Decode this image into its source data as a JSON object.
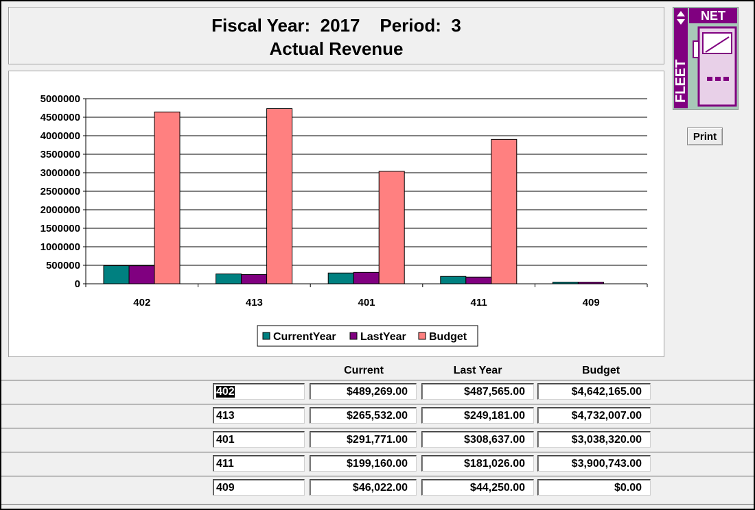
{
  "header": {
    "fiscal_line": "Fiscal Year:  2017    Period:  3",
    "subtitle": "Actual Revenue"
  },
  "logo": {
    "text_top": "NET",
    "text_side": "FLEET"
  },
  "print_label": "Print",
  "colors": {
    "CurrentYear": "#008080",
    "LastYear": "#800080",
    "Budget": "#ff8080"
  },
  "chart_data": {
    "type": "bar",
    "categories": [
      "402",
      "413",
      "401",
      "411",
      "409"
    ],
    "series": [
      {
        "name": "CurrentYear",
        "values": [
          489269,
          265532,
          291771,
          199160,
          46022
        ]
      },
      {
        "name": "LastYear",
        "values": [
          487565,
          249181,
          308637,
          181026,
          44250
        ]
      },
      {
        "name": "Budget",
        "values": [
          4642165,
          4732007,
          3038320,
          3900743,
          0
        ]
      }
    ],
    "y_ticks": [
      "0",
      "500000",
      "1000000",
      "1500000",
      "2000000",
      "2500000",
      "3000000",
      "3500000",
      "4000000",
      "4500000",
      "5000000"
    ],
    "ylim": [
      0,
      5000000
    ],
    "grid": true,
    "legend_position": "bottom"
  },
  "table": {
    "headers": {
      "current": "Current",
      "last_year": "Last Year",
      "budget": "Budget"
    },
    "rows": [
      {
        "code": "402",
        "current": "$489,269.00",
        "last_year": "$487,565.00",
        "budget": "$4,642,165.00"
      },
      {
        "code": "413",
        "current": "$265,532.00",
        "last_year": "$249,181.00",
        "budget": "$4,732,007.00"
      },
      {
        "code": "401",
        "current": "$291,771.00",
        "last_year": "$308,637.00",
        "budget": "$3,038,320.00"
      },
      {
        "code": "411",
        "current": "$199,160.00",
        "last_year": "$181,026.00",
        "budget": "$3,900,743.00"
      },
      {
        "code": "409",
        "current": "$46,022.00",
        "last_year": "$44,250.00",
        "budget": "$0.00"
      }
    ]
  }
}
